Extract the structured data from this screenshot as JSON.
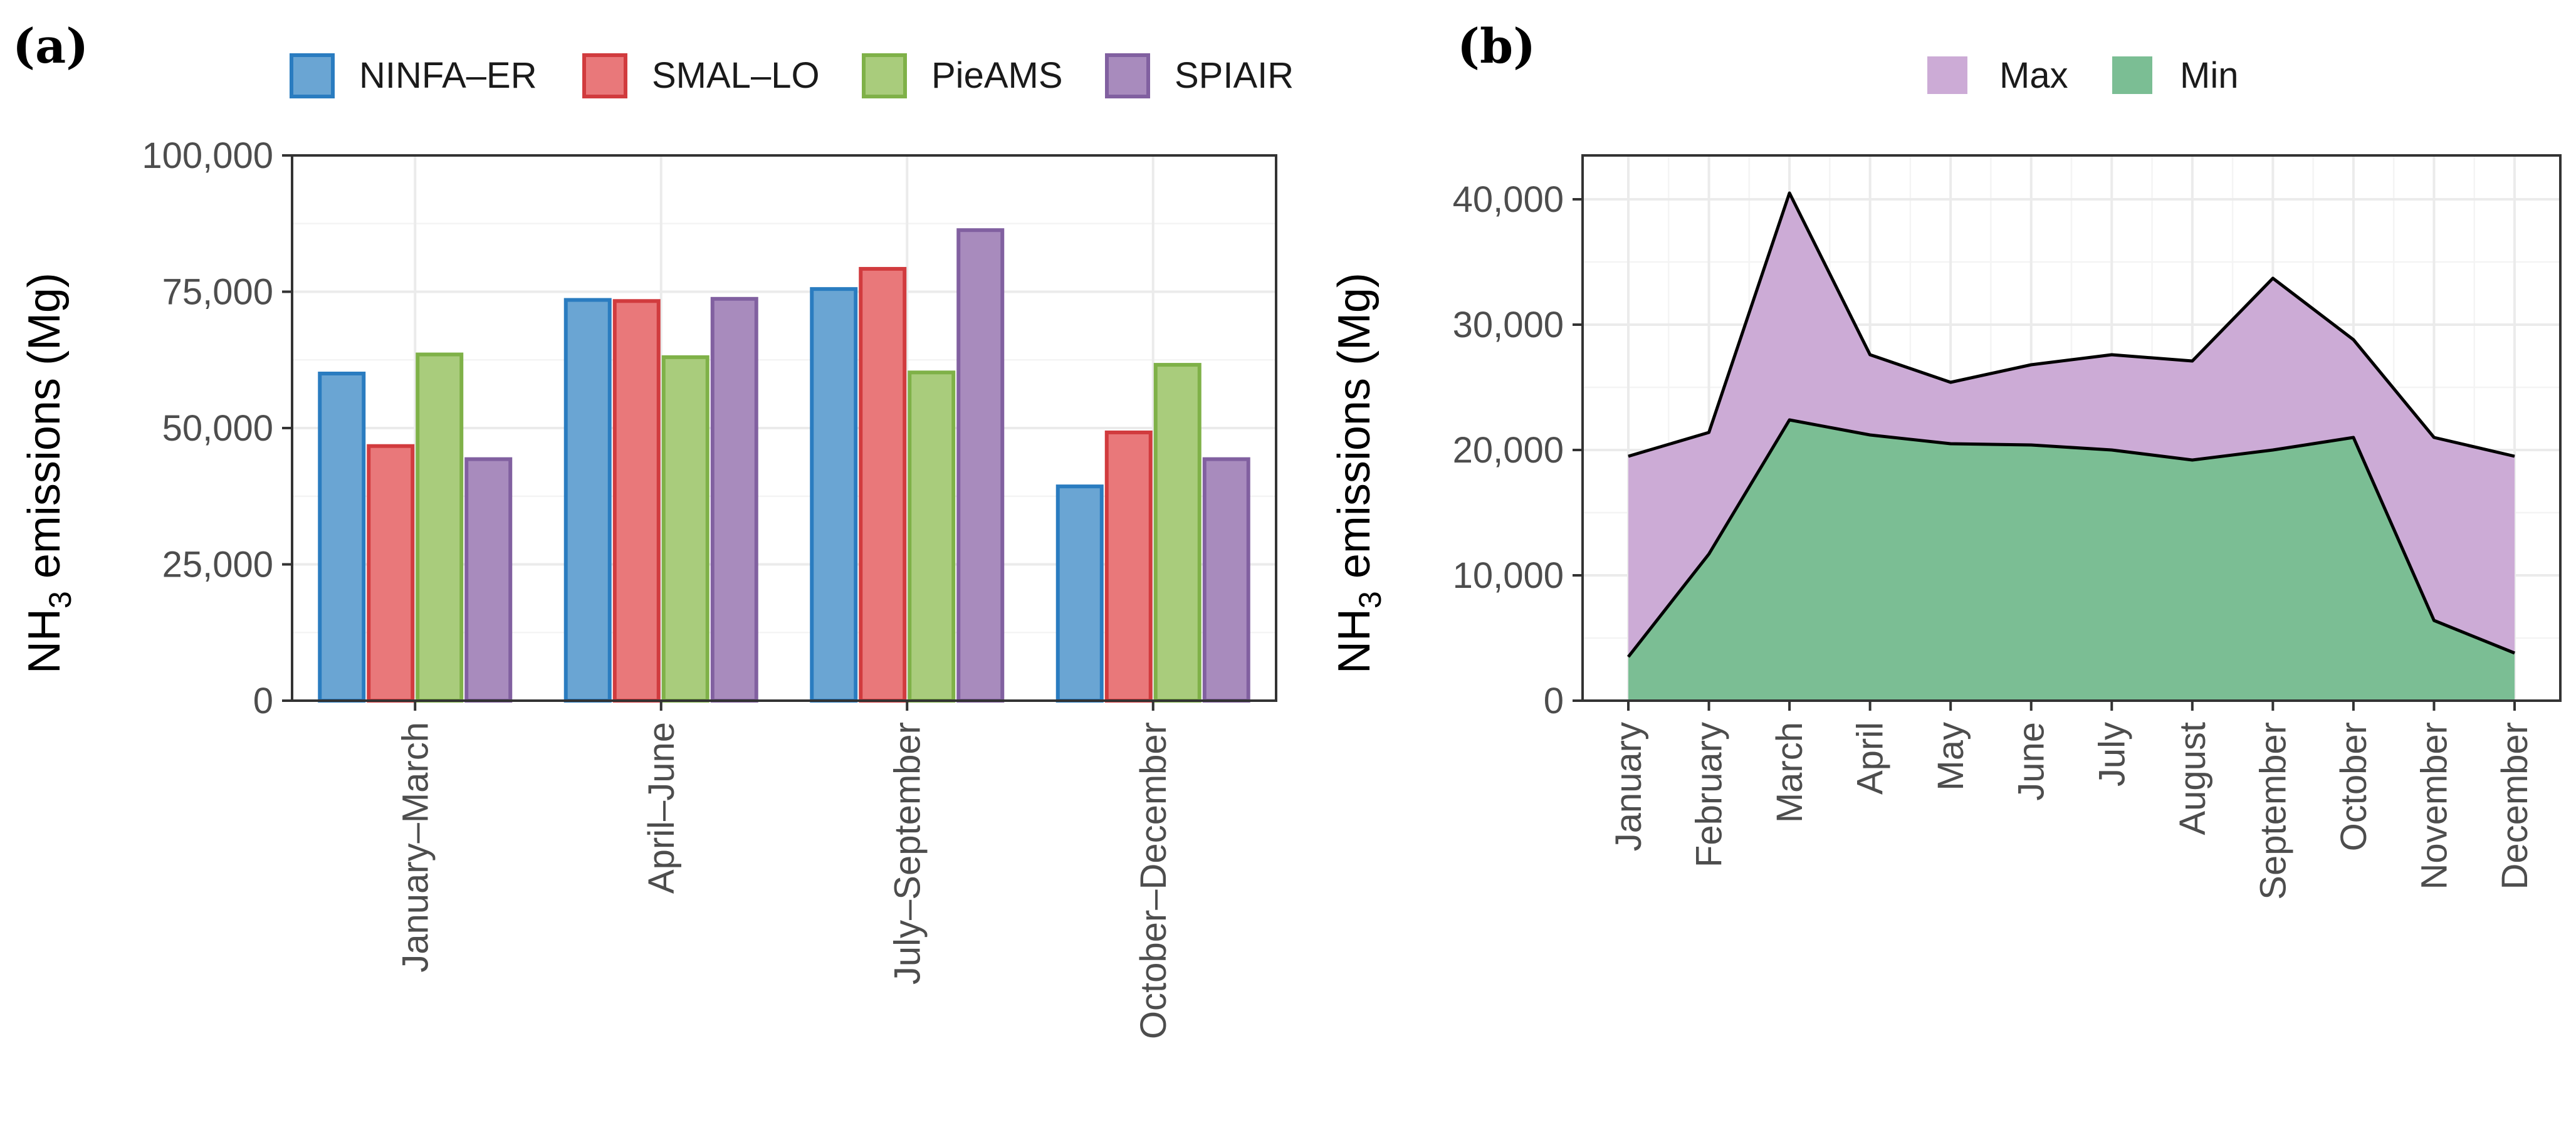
{
  "colors": {
    "NINFA-ER": {
      "fill": "#6aa5d3",
      "stroke": "#2a7cc0"
    },
    "SMAL-LO": {
      "fill": "#e9787a",
      "stroke": "#d13b3e"
    },
    "PieAMS": {
      "fill": "#a9cc7c",
      "stroke": "#7fb148"
    },
    "SPIAIR": {
      "fill": "#a88bbd",
      "stroke": "#8160a0"
    },
    "Max": {
      "fill": "#ccabd6"
    },
    "Min": {
      "fill": "#7bbe94"
    }
  },
  "chart_data": [
    {
      "panel": "(a)",
      "type": "bar",
      "ylabel_main": "NH",
      "ylabel_sub": "3",
      "ylabel_rest": " emissions (Mg)",
      "ylim": [
        0,
        100000
      ],
      "yticks": [
        0,
        25000,
        50000,
        75000,
        100000
      ],
      "ytick_labels": [
        "0",
        "25,000",
        "50,000",
        "75,000",
        "100,000"
      ],
      "categories": [
        "January–March",
        "April–June",
        "July–September",
        "October–December"
      ],
      "legend": [
        "NINFA–ER",
        "SMAL–LO",
        "PieAMS",
        "SPIAIR"
      ],
      "series": [
        {
          "name": "NINFA-ER",
          "values": [
            60000,
            73500,
            75500,
            39300
          ]
        },
        {
          "name": "SMAL-LO",
          "values": [
            46700,
            73300,
            79200,
            49200
          ]
        },
        {
          "name": "PieAMS",
          "values": [
            63500,
            63000,
            60200,
            61600
          ]
        },
        {
          "name": "SPIAIR",
          "values": [
            44300,
            73700,
            86300,
            44300
          ]
        }
      ]
    },
    {
      "panel": "(b)",
      "type": "area",
      "ylabel_main": "NH",
      "ylabel_sub": "3",
      "ylabel_rest": " emissions (Mg)",
      "ylim": [
        0,
        43500
      ],
      "yticks": [
        0,
        10000,
        20000,
        30000,
        40000
      ],
      "ytick_labels": [
        "0",
        "10,000",
        "20,000",
        "30,000",
        "40,000"
      ],
      "categories": [
        "January",
        "February",
        "March",
        "April",
        "May",
        "June",
        "July",
        "August",
        "September",
        "October",
        "November",
        "December"
      ],
      "legend": [
        "Max",
        "Min"
      ],
      "series": [
        {
          "name": "Max",
          "values": [
            19500,
            21400,
            40500,
            27600,
            25400,
            26800,
            27600,
            27100,
            33700,
            28800,
            21000,
            19500
          ]
        },
        {
          "name": "Min",
          "values": [
            3500,
            11700,
            22400,
            21200,
            20500,
            20400,
            20000,
            19200,
            20000,
            21000,
            6400,
            3800
          ]
        }
      ]
    }
  ]
}
